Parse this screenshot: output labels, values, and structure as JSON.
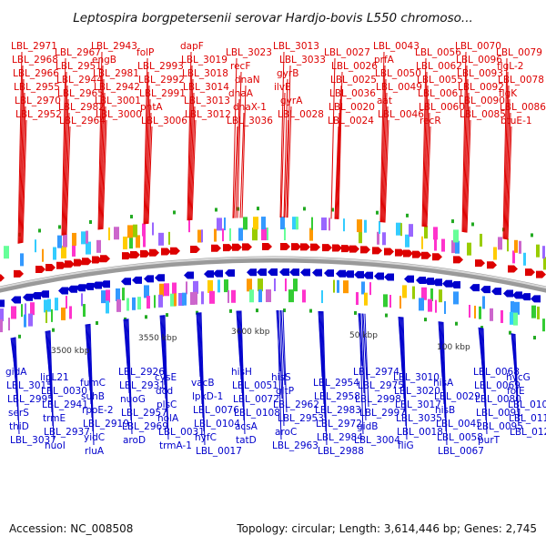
{
  "title": "Leptospira borgpetersenii serovar Hardjo-bovis L550 chromoso...",
  "footer": {
    "accession": "Accession: NC_008508",
    "summary": "Topology: circular; Length: 3,614,446 bp; Genes: 2,745"
  },
  "colors": {
    "forward": "#dd0000",
    "reverse": "#0000cc",
    "backbone": "#8a8a8a"
  },
  "tick_labels": [
    "3500 kbp",
    "3550 kbp",
    "3600 kbp",
    "50 kbp",
    "100 kbp"
  ],
  "forward_labels": [
    "LBL_2971",
    "LBL_2968",
    "LBL_2966",
    "LBL_2955",
    "LBL_2970",
    "LBL_2952",
    "LBL_2967",
    "LBL_2951",
    "LBL_2944",
    "LBL_2965",
    "LBL_2982",
    "LBL_2964",
    "LBL_2943",
    "engB",
    "LBL_2981",
    "LBL_2942",
    "LBL_3001",
    "LBL_3000",
    "folP",
    "LBL_2993",
    "LBL_2992",
    "LBL_2991",
    "pntA",
    "LBL_3006",
    "dapF",
    "LBL_3019",
    "LBL_3018",
    "LBL_3014",
    "LBL_3013",
    "LBL_3012",
    "LBL_3023",
    "recF",
    "dnaN",
    "dnaA",
    "dnaX-1",
    "LBL_3036",
    "LBL_3013",
    "LBL_3033",
    "gyrB",
    "ilvE",
    "gyrA",
    "LBL_0028",
    "LBL_0027",
    "LBL_0026",
    "LBL_0025",
    "LBL_0036",
    "LBL_0020",
    "LBL_0024",
    "LBL_0043",
    "prfA",
    "LBL_0050",
    "LBL_0049",
    "aat",
    "LBL_0046",
    "LBL_0056",
    "LBL_0062",
    "LBL_0055",
    "LBL_0061",
    "LBL_0060",
    "recR",
    "LBL_0070",
    "LBL_0096",
    "LBL_0093",
    "LBL_0092",
    "LBL_0090",
    "LBL_0085",
    "LBL_0079",
    "flgL-2",
    "LBL_0078",
    "flgK",
    "LBL_0086",
    "btuE-1"
  ],
  "reverse_labels": [
    "gidA",
    "LBL_3015",
    "LBL_2995",
    "serS",
    "thiD",
    "LBL_3037",
    "lipL21",
    "LBL_0030",
    "LBL_2941",
    "trmE",
    "LBL_2937",
    "nuoI",
    "fumC",
    "suhB",
    "rpoE-2",
    "LBL_2919",
    "yidC",
    "rluA",
    "LBL_2926",
    "LBL_2931",
    "nuoG",
    "LBL_2957",
    "LBL_2969",
    "aroD",
    "cysE",
    "dcd",
    "plsC",
    "holA",
    "LBL_0031",
    "trmA-1",
    "vacB",
    "lpxD-1",
    "LBL_0076",
    "LBL_0104",
    "hyfC",
    "LBL_0017",
    "hisH",
    "LBL_0051",
    "LBL_0072",
    "LBL_0108",
    "acsA",
    "tatD",
    "hisS",
    "gltP",
    "LBL_2962",
    "LBL_2953",
    "aroC",
    "LBL_2963",
    "LBL_2954",
    "LBL_2958",
    "LBL_2983",
    "LBL_2972",
    "LBL_2984",
    "LBL_2988",
    "LBL_2974",
    "LBL_2975",
    "LBL_2998",
    "LBL_2997",
    "gidB",
    "LBL_3004",
    "LBL_3010",
    "LBL_3020",
    "LBL_3017",
    "LBL_3035",
    "LBL_0018",
    "fliG",
    "hisA",
    "LBL_0029",
    "hisB",
    "LBL_0045",
    "LBL_0058",
    "LBL_0067",
    "LBL_0068",
    "LBL_0069",
    "LBL_0080",
    "LBL_0091",
    "LBL_0095",
    "purT",
    "hycG",
    "folE",
    "LBL_0105",
    "LBL_0110",
    "LBL_0124"
  ]
}
